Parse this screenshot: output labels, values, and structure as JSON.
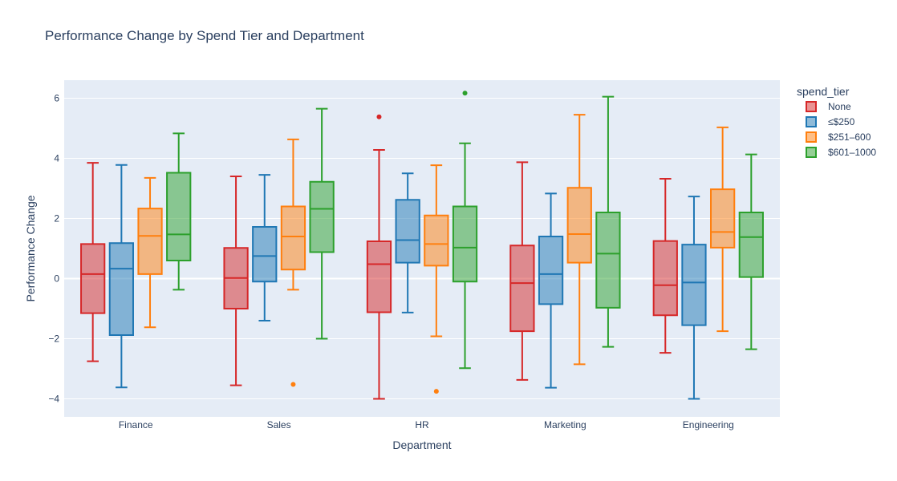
{
  "chart_data": {
    "type": "box",
    "title": "Performance Change by Spend Tier and Department",
    "xlabel": "Department",
    "ylabel": "Performance Change",
    "ylim": [
      -4.6,
      6.6
    ],
    "yticks": [
      -4,
      -2,
      0,
      2,
      4,
      6
    ],
    "ytick_labels": [
      "−4",
      "−2",
      "0",
      "2",
      "4",
      "6"
    ],
    "categories": [
      "Finance",
      "Sales",
      "HR",
      "Marketing",
      "Engineering"
    ],
    "legend": {
      "title": "spend_tier",
      "position": "top-right"
    },
    "series": [
      {
        "name": "None",
        "color": "#d62728",
        "boxes": [
          {
            "min": -2.75,
            "q1": -1.15,
            "median": 0.15,
            "q3": 1.15,
            "max": 3.85,
            "outliers": []
          },
          {
            "min": -3.55,
            "q1": -1.0,
            "median": 0.02,
            "q3": 1.02,
            "max": 3.4,
            "outliers": []
          },
          {
            "min": -4.0,
            "q1": -1.12,
            "median": 0.48,
            "q3": 1.24,
            "max": 4.28,
            "outliers": [
              5.38
            ]
          },
          {
            "min": -3.37,
            "q1": -1.75,
            "median": -0.15,
            "q3": 1.1,
            "max": 3.87,
            "outliers": []
          },
          {
            "min": -2.47,
            "q1": -1.22,
            "median": -0.22,
            "q3": 1.25,
            "max": 3.32,
            "outliers": []
          }
        ]
      },
      {
        "name": "≤$250",
        "color": "#1f77b4",
        "boxes": [
          {
            "min": -3.62,
            "q1": -1.88,
            "median": 0.33,
            "q3": 1.18,
            "max": 3.78,
            "outliers": []
          },
          {
            "min": -1.4,
            "q1": -0.1,
            "median": 0.75,
            "q3": 1.72,
            "max": 3.45,
            "outliers": []
          },
          {
            "min": -1.13,
            "q1": 0.53,
            "median": 1.28,
            "q3": 2.62,
            "max": 3.5,
            "outliers": []
          },
          {
            "min": -3.63,
            "q1": -0.85,
            "median": 0.15,
            "q3": 1.4,
            "max": 2.83,
            "outliers": []
          },
          {
            "min": -4.0,
            "q1": -1.55,
            "median": -0.13,
            "q3": 1.13,
            "max": 2.73,
            "outliers": []
          }
        ]
      },
      {
        "name": "$251–600",
        "color": "#ff7f0e",
        "boxes": [
          {
            "min": -1.62,
            "q1": 0.15,
            "median": 1.42,
            "q3": 2.33,
            "max": 3.35,
            "outliers": []
          },
          {
            "min": -0.37,
            "q1": 0.3,
            "median": 1.4,
            "q3": 2.4,
            "max": 4.63,
            "outliers": [
              -3.52
            ]
          },
          {
            "min": -1.92,
            "q1": 0.43,
            "median": 1.15,
            "q3": 2.1,
            "max": 3.77,
            "outliers": [
              -3.75
            ]
          },
          {
            "min": -2.85,
            "q1": 0.53,
            "median": 1.48,
            "q3": 3.02,
            "max": 5.45,
            "outliers": []
          },
          {
            "min": -1.75,
            "q1": 1.03,
            "median": 1.55,
            "q3": 2.97,
            "max": 5.03,
            "outliers": []
          }
        ]
      },
      {
        "name": "$601–1000",
        "color": "#2ca02c",
        "boxes": [
          {
            "min": -0.37,
            "q1": 0.6,
            "median": 1.47,
            "q3": 3.52,
            "max": 4.83,
            "outliers": []
          },
          {
            "min": -2.0,
            "q1": 0.88,
            "median": 2.32,
            "q3": 3.22,
            "max": 5.65,
            "outliers": []
          },
          {
            "min": -2.98,
            "q1": -0.1,
            "median": 1.03,
            "q3": 2.4,
            "max": 4.5,
            "outliers": [
              6.17
            ]
          },
          {
            "min": -2.27,
            "q1": -0.97,
            "median": 0.83,
            "q3": 2.2,
            "max": 6.05,
            "outliers": []
          },
          {
            "min": -2.35,
            "q1": 0.05,
            "median": 1.38,
            "q3": 2.2,
            "max": 4.13,
            "outliers": []
          }
        ]
      }
    ]
  }
}
